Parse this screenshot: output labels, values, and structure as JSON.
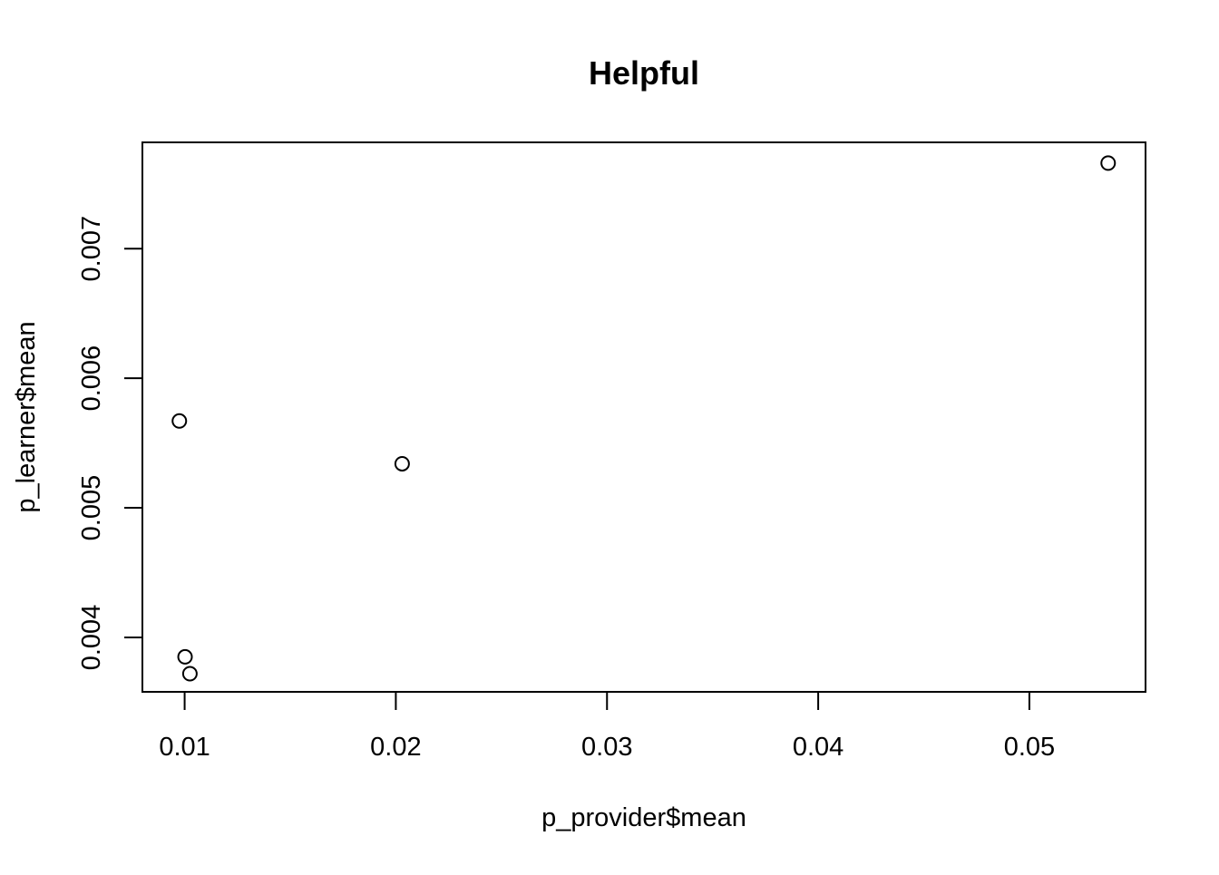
{
  "chart_data": {
    "type": "scatter",
    "title": "Helpful",
    "xlabel": "p_provider$mean",
    "ylabel": "p_learner$mean",
    "xlim": [
      0.008,
      0.0555
    ],
    "ylim": [
      0.00358,
      0.00782
    ],
    "x_ticks": [
      0.01,
      0.02,
      0.03,
      0.04,
      0.05
    ],
    "x_tick_labels": [
      "0.01",
      "0.02",
      "0.03",
      "0.04",
      "0.05"
    ],
    "y_ticks": [
      0.004,
      0.005,
      0.006,
      0.007
    ],
    "y_tick_labels": [
      "0.004",
      "0.005",
      "0.006",
      "0.007"
    ],
    "grid": false,
    "marker": "open-circle",
    "points": [
      {
        "x": 0.00975,
        "y": 0.00567
      },
      {
        "x": 0.01002,
        "y": 0.00385
      },
      {
        "x": 0.01025,
        "y": 0.00372
      },
      {
        "x": 0.0203,
        "y": 0.00534
      },
      {
        "x": 0.05373,
        "y": 0.00766
      }
    ]
  }
}
